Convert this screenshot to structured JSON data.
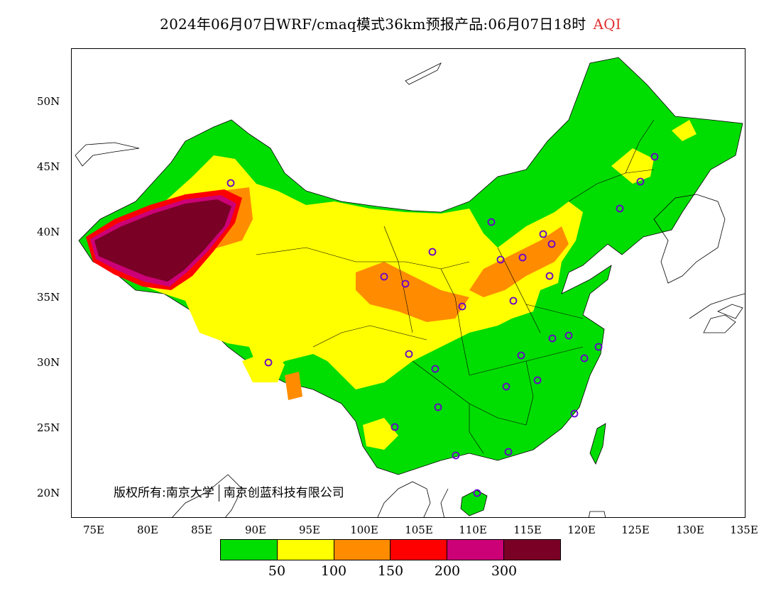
{
  "title": {
    "main": "2024年06月07日WRF/cmaq模式36km预报产品:06月07日18时",
    "variable": "AQI",
    "variable_color": "#e03030"
  },
  "copyright": {
    "owner": "版权所有:南京大学",
    "partner": "南京创蓝科技有限公司"
  },
  "axes": {
    "y_ticks": [
      "50N",
      "45N",
      "40N",
      "35N",
      "30N",
      "25N",
      "20N"
    ],
    "x_ticks": [
      "75E",
      "80E",
      "85E",
      "90E",
      "95E",
      "100E",
      "105E",
      "110E",
      "115E",
      "120E",
      "125E",
      "130E",
      "135E"
    ]
  },
  "legend": {
    "colors": [
      "#00dd00",
      "#ffff00",
      "#ff8c00",
      "#ff0000",
      "#cc0077",
      "#7a0026"
    ],
    "labels": [
      "50",
      "100",
      "150",
      "200",
      "300"
    ]
  }
}
